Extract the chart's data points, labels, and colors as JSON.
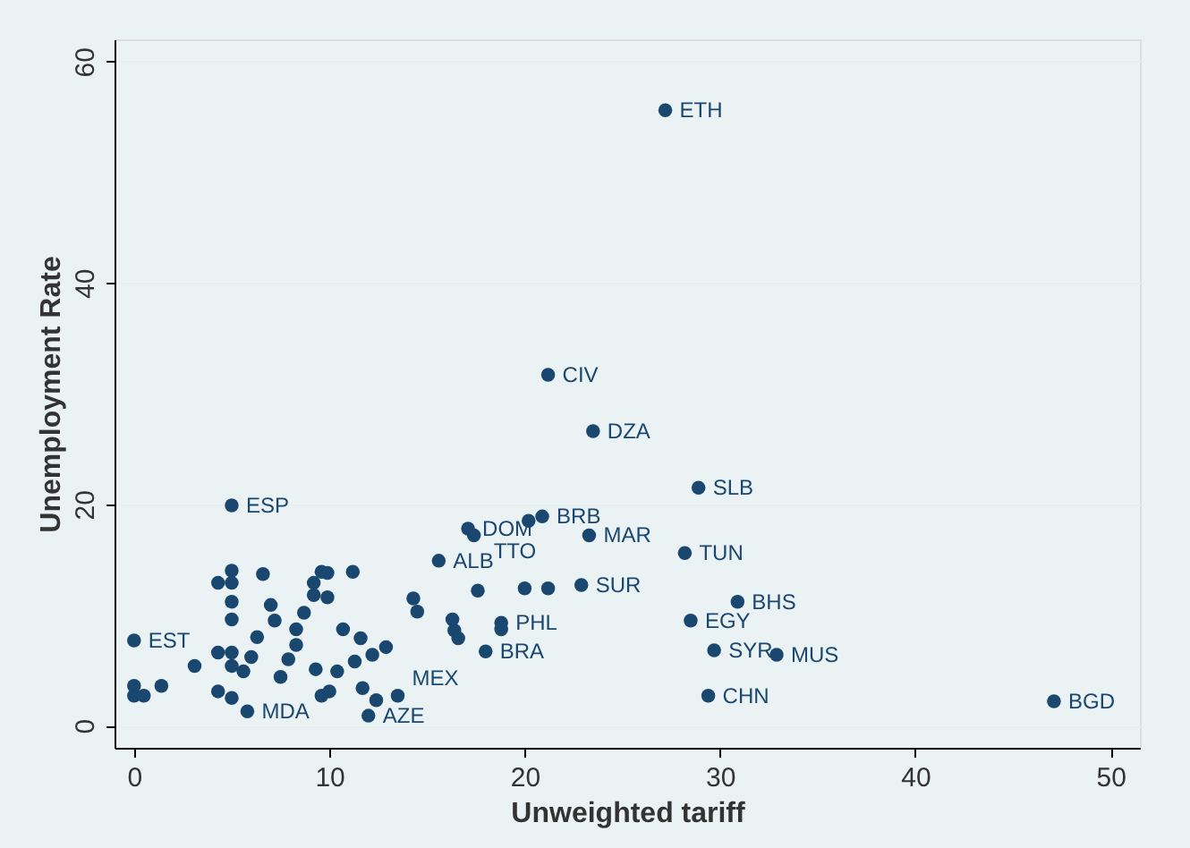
{
  "chart_data": {
    "type": "scatter",
    "xlabel": "Unweighted tariff",
    "ylabel": "Unemployment Rate",
    "xlim": [
      -1,
      51.5
    ],
    "ylim": [
      -2,
      62
    ],
    "xticks": [
      0,
      10,
      20,
      30,
      40,
      50
    ],
    "yticks": [
      0,
      20,
      40,
      60
    ],
    "grid": "y",
    "marker": "circle",
    "series": [
      {
        "color": "#1a476f",
        "x": [
          27.2,
          21.2,
          23.5,
          28.9,
          5.0,
          23.3,
          28.2,
          30.9,
          28.5,
          29.7,
          32.9,
          29.4,
          47.1,
          22.9,
          18.8,
          18.0,
          15.6,
          0,
          5.8,
          12.0,
          13.5,
          20.9,
          17.1,
          17.4,
          5.0,
          5.0,
          0,
          0,
          0.5,
          1.4,
          3.1,
          4.3,
          4.3,
          4.3,
          5.0,
          5.0,
          5.0,
          5.0,
          5.0,
          5.6,
          6.3,
          6.6,
          7.2,
          7.9,
          8.3,
          9.2,
          9.2,
          9.6,
          9.9,
          9.9,
          9.3,
          9.6,
          10.0,
          10.4,
          10.7,
          11.2,
          11.3,
          11.6,
          11.7,
          12.2,
          12.4,
          12.9,
          14.3,
          14.5,
          16.3,
          16.4,
          16.6,
          17.6,
          18.8,
          20.0,
          20.2,
          21.2,
          7.0,
          8.3,
          6.0,
          7.5,
          8.7
        ],
        "values": [
          55.6,
          31.7,
          26.6,
          21.5,
          19.9,
          17.2,
          15.6,
          11.2,
          9.5,
          6.8,
          6.4,
          2.7,
          2.2,
          12.7,
          9.3,
          6.7,
          14.9,
          7.7,
          1.3,
          0.9,
          2.7,
          18.9,
          17.8,
          17.2,
          2.5,
          14.0,
          3.6,
          2.7,
          2.7,
          3.6,
          5.4,
          6.6,
          12.9,
          3.1,
          12.9,
          11.2,
          9.6,
          6.6,
          5.4,
          4.9,
          8.0,
          13.7,
          9.5,
          6.0,
          8.7,
          12.9,
          11.8,
          13.9,
          11.6,
          13.8,
          5.1,
          2.7,
          3.1,
          4.9,
          8.7,
          13.9,
          5.8,
          7.9,
          3.4,
          6.4,
          2.3,
          7.1,
          11.5,
          10.3,
          9.6,
          8.6,
          7.9,
          12.2,
          8.7,
          12.4,
          18.5,
          12.4,
          10.9,
          7.3,
          6.2,
          4.4,
          10.2
        ]
      }
    ],
    "annotations": [
      {
        "text": "ETH",
        "x": 27.2,
        "y": 55.6
      },
      {
        "text": "CIV",
        "x": 21.2,
        "y": 31.7
      },
      {
        "text": "DZA",
        "x": 23.5,
        "y": 26.6
      },
      {
        "text": "SLB",
        "x": 28.9,
        "y": 21.5
      },
      {
        "text": "ESP",
        "x": 5.0,
        "y": 19.9
      },
      {
        "text": "MAR",
        "x": 23.3,
        "y": 17.2
      },
      {
        "text": "TUN",
        "x": 28.2,
        "y": 15.6
      },
      {
        "text": "BHS",
        "x": 30.9,
        "y": 11.2
      },
      {
        "text": "EGY",
        "x": 28.5,
        "y": 9.5
      },
      {
        "text": "SYR",
        "x": 29.7,
        "y": 6.8
      },
      {
        "text": "MUS",
        "x": 32.9,
        "y": 6.4
      },
      {
        "text": "CHN",
        "x": 29.4,
        "y": 2.7
      },
      {
        "text": "BGD",
        "x": 47.1,
        "y": 2.2
      },
      {
        "text": "SUR",
        "x": 22.9,
        "y": 12.7
      },
      {
        "text": "PHL",
        "x": 18.8,
        "y": 9.3
      },
      {
        "text": "BRA",
        "x": 18.0,
        "y": 6.7
      },
      {
        "text": "ALB",
        "x": 15.6,
        "y": 14.9
      },
      {
        "text": "EST",
        "x": 0,
        "y": 7.7
      },
      {
        "text": "MDA",
        "x": 5.8,
        "y": 1.3
      },
      {
        "text": "AZE",
        "x": 12.0,
        "y": 0.9
      },
      {
        "text": "MEX",
        "x": 13.5,
        "y": 2.7
      },
      {
        "text": "BRB",
        "x": 20.9,
        "y": 18.9
      },
      {
        "text": "DOM",
        "x": 17.1,
        "y": 17.8
      },
      {
        "text": "TTO",
        "x": 17.4,
        "y": 17.2
      }
    ]
  }
}
